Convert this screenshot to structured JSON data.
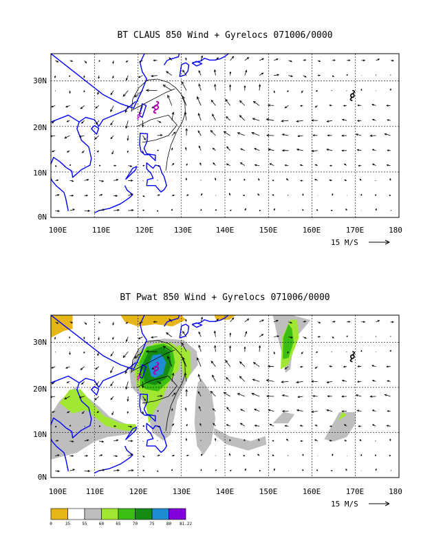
{
  "panels": [
    {
      "title": "BT CLAUS 850 Wind + Gyrelocs 071006/0000",
      "lon_ticks": [
        "100E",
        "110E",
        "120E",
        "130E",
        "140E",
        "150E",
        "160E",
        "170E",
        "180"
      ],
      "lat_ticks": [
        "0N",
        "10N",
        "20N",
        "30N"
      ],
      "vector_ref": "15 M/S",
      "shading": false
    },
    {
      "title": "BT Pwat 850 Wind + Gyrelocs 071006/0000",
      "lon_ticks": [
        "100E",
        "110E",
        "120E",
        "130E",
        "140E",
        "150E",
        "160E",
        "170E",
        "180"
      ],
      "lat_ticks": [
        "0N",
        "10N",
        "20N",
        "30N"
      ],
      "vector_ref": "15 M/S",
      "shading": true
    }
  ],
  "colorbar": {
    "labels": [
      "0",
      "35",
      "55",
      "60",
      "65",
      "70",
      "75",
      "80",
      "81.22"
    ],
    "colors": [
      "#e6b619",
      "#ffffff",
      "#bebebe",
      "#a0e632",
      "#3cbe14",
      "#148c14",
      "#1e8cd2",
      "#8200dc"
    ]
  },
  "colors": {
    "coast": "#0000ff",
    "tc_symbol": "#b000b0",
    "grid": "#000000"
  },
  "map": {
    "lon_min": 100,
    "lon_max": 180,
    "lat_min": 0,
    "lat_max": 36
  }
}
